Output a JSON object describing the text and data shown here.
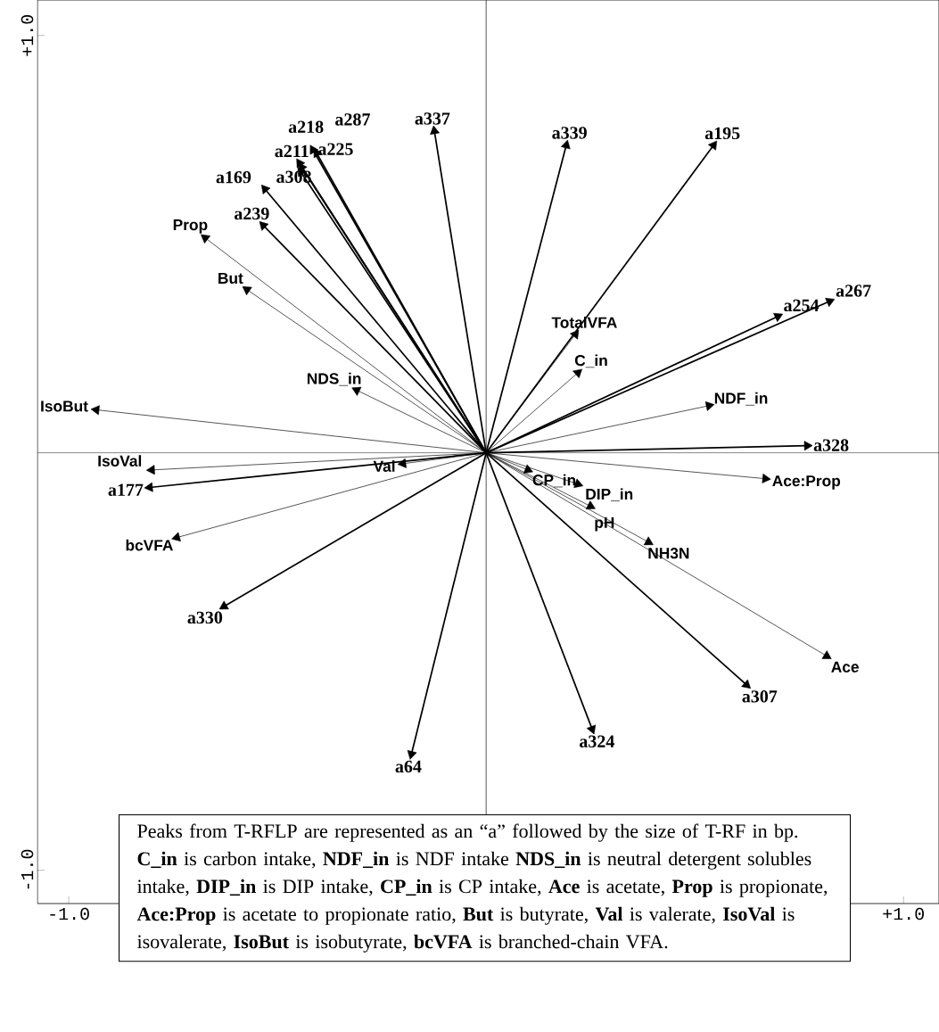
{
  "chart_data": {
    "type": "scatter",
    "marker": "triangle",
    "xlim": [
      -1.075,
      1.085
    ],
    "ylim": [
      -1.08,
      1.085
    ],
    "xticks": [
      {
        "value": -1,
        "label": "-1.0"
      },
      {
        "value": 1,
        "label": "+1.0"
      }
    ],
    "yticks": [
      {
        "value": -1,
        "label": "-1.0"
      },
      {
        "value": 1,
        "label": "+1.0"
      }
    ],
    "series": [
      {
        "color": "#000000",
        "x": [
          -0.447,
          -0.442,
          -0.415,
          -0.444,
          -0.406,
          -0.124,
          0.192,
          -0.53,
          0.545,
          -0.534,
          0.699,
          0.823,
          0.769,
          -0.806,
          -0.628,
          -0.179,
          0.254,
          0.624
        ],
        "values": [
          0.694,
          0.684,
          0.726,
          0.673,
          0.718,
          0.771,
          0.737,
          0.632,
          0.737,
          0.545,
          0.327,
          0.363,
          0.017,
          -0.083,
          -0.368,
          -0.722,
          -0.662,
          -0.556
        ],
        "value_labels": [
          "a211",
          "a308",
          "a218",
          "a225",
          "a287",
          "a337",
          "a339",
          "a169",
          "a195",
          "a239",
          "a254",
          "a267",
          "a328",
          "a177",
          "a330",
          "a64",
          "a324",
          "a307"
        ]
      },
      {
        "color": "#000000",
        "x": [
          -0.673,
          -0.573,
          0.214,
          -0.31,
          0.22,
          -0.934,
          0.534,
          -0.801,
          -0.199,
          0.669,
          0.1,
          0.22,
          0.25,
          0.389,
          -0.741,
          0.816
        ],
        "values": [
          0.515,
          0.391,
          0.284,
          0.15,
          0.192,
          0.103,
          0.113,
          -0.041,
          -0.026,
          -0.062,
          -0.041,
          -0.075,
          -0.128,
          -0.214,
          -0.203,
          -0.487
        ],
        "value_labels": [
          "Prop",
          "But",
          "TotalVFA",
          "NDS_in",
          "C_in",
          "IsoBut",
          "NDF_in",
          "IsoVal",
          "Val",
          "Ace:Prop",
          "CP_in",
          "DIP_in",
          "pH",
          "NH3N",
          "bcVFA",
          "Ace"
        ]
      }
    ],
    "annotations": [
      "Peaks from T-RFLP are represented as an “a” followed by the size of T-RF in bp.",
      "**C_in** is carbon intake, **NDF_in** is NDF intake **NDS_in** is neutral detergent solubles intake, **DIP_in** is DIP intake, **CP_in** is CP intake, **Ace** is acetate, **Prop** is propionate, **Ace:Prop** is acetate to propionate ratio, **But** is butyrate, **Val** is valerate, **IsoVal** is isovalerate, **IsoBut** is isobutyrate, **bcVFA** is branched-chain VFA."
    ]
  }
}
